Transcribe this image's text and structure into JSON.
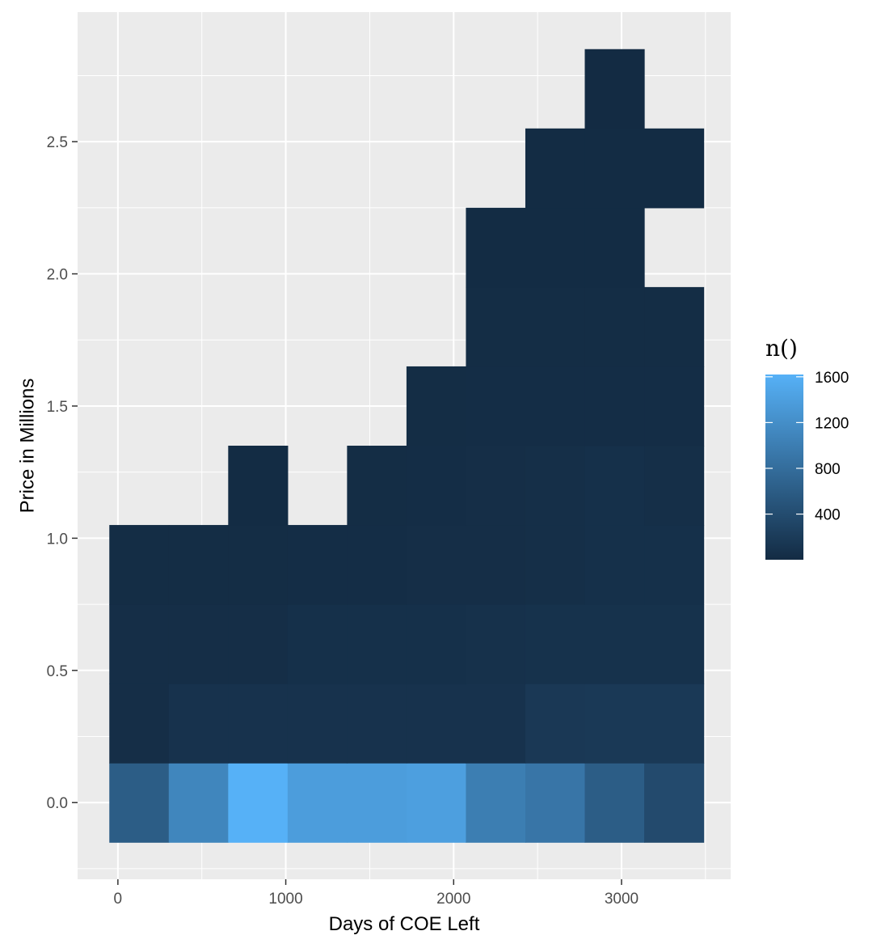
{
  "chart_data": {
    "type": "heatmap",
    "xlabel": "Days of COE Left",
    "ylabel": "Price in Millions",
    "xlim": [
      -240,
      3650
    ],
    "ylim": [
      -0.29,
      2.99
    ],
    "x_ticks": [
      0,
      1000,
      2000,
      3000
    ],
    "x_tick_labels": [
      "0",
      "1000",
      "2000",
      "3000"
    ],
    "y_ticks": [
      0.0,
      0.5,
      1.0,
      1.5,
      2.0,
      2.5
    ],
    "y_tick_labels": [
      "0.0",
      "0.5",
      "1.0",
      "1.5",
      "2.0",
      "2.5"
    ],
    "bin_width_x": 354,
    "bin_height_y": 0.3,
    "x_bin_centers": [
      126,
      480,
      834,
      1188,
      1542,
      1896,
      2250,
      2604,
      2958,
      3312
    ],
    "y_bin_centers": [
      0.0,
      0.3,
      0.6,
      0.9,
      1.2,
      1.5,
      1.8,
      2.1,
      2.4,
      2.7
    ],
    "cells": [
      {
        "x": 126,
        "y": 0.0,
        "count": 600
      },
      {
        "x": 480,
        "y": 0.0,
        "count": 1100
      },
      {
        "x": 834,
        "y": 0.0,
        "count": 1620
      },
      {
        "x": 1188,
        "y": 0.0,
        "count": 1380
      },
      {
        "x": 1542,
        "y": 0.0,
        "count": 1380
      },
      {
        "x": 1896,
        "y": 0.0,
        "count": 1400
      },
      {
        "x": 2250,
        "y": 0.0,
        "count": 1000
      },
      {
        "x": 2604,
        "y": 0.0,
        "count": 900
      },
      {
        "x": 2958,
        "y": 0.0,
        "count": 600
      },
      {
        "x": 3312,
        "y": 0.0,
        "count": 380
      },
      {
        "x": 126,
        "y": 0.3,
        "count": 40
      },
      {
        "x": 480,
        "y": 0.3,
        "count": 90
      },
      {
        "x": 834,
        "y": 0.3,
        "count": 90
      },
      {
        "x": 1188,
        "y": 0.3,
        "count": 90
      },
      {
        "x": 1542,
        "y": 0.3,
        "count": 90
      },
      {
        "x": 1896,
        "y": 0.3,
        "count": 90
      },
      {
        "x": 2250,
        "y": 0.3,
        "count": 90
      },
      {
        "x": 2604,
        "y": 0.3,
        "count": 160
      },
      {
        "x": 2958,
        "y": 0.3,
        "count": 170
      },
      {
        "x": 3312,
        "y": 0.3,
        "count": 170
      },
      {
        "x": 126,
        "y": 0.6,
        "count": 40
      },
      {
        "x": 480,
        "y": 0.6,
        "count": 40
      },
      {
        "x": 834,
        "y": 0.6,
        "count": 40
      },
      {
        "x": 1188,
        "y": 0.6,
        "count": 60
      },
      {
        "x": 1542,
        "y": 0.6,
        "count": 60
      },
      {
        "x": 1896,
        "y": 0.6,
        "count": 60
      },
      {
        "x": 2250,
        "y": 0.6,
        "count": 70
      },
      {
        "x": 2604,
        "y": 0.6,
        "count": 80
      },
      {
        "x": 2958,
        "y": 0.6,
        "count": 80
      },
      {
        "x": 3312,
        "y": 0.6,
        "count": 80
      },
      {
        "x": 126,
        "y": 0.9,
        "count": 20
      },
      {
        "x": 480,
        "y": 0.9,
        "count": 20
      },
      {
        "x": 834,
        "y": 0.9,
        "count": 20
      },
      {
        "x": 1188,
        "y": 0.9,
        "count": 30
      },
      {
        "x": 1542,
        "y": 0.9,
        "count": 30
      },
      {
        "x": 1896,
        "y": 0.9,
        "count": 40
      },
      {
        "x": 2250,
        "y": 0.9,
        "count": 40
      },
      {
        "x": 2604,
        "y": 0.9,
        "count": 50
      },
      {
        "x": 2958,
        "y": 0.9,
        "count": 60
      },
      {
        "x": 3312,
        "y": 0.9,
        "count": 60
      },
      {
        "x": 834,
        "y": 1.2,
        "count": 10
      },
      {
        "x": 1542,
        "y": 1.2,
        "count": 20
      },
      {
        "x": 1896,
        "y": 1.2,
        "count": 30
      },
      {
        "x": 2250,
        "y": 1.2,
        "count": 40
      },
      {
        "x": 2604,
        "y": 1.2,
        "count": 50
      },
      {
        "x": 2958,
        "y": 1.2,
        "count": 60
      },
      {
        "x": 3312,
        "y": 1.2,
        "count": 50
      },
      {
        "x": 1896,
        "y": 1.5,
        "count": 20
      },
      {
        "x": 2250,
        "y": 1.5,
        "count": 30
      },
      {
        "x": 2604,
        "y": 1.5,
        "count": 30
      },
      {
        "x": 2958,
        "y": 1.5,
        "count": 30
      },
      {
        "x": 3312,
        "y": 1.5,
        "count": 30
      },
      {
        "x": 2250,
        "y": 1.8,
        "count": 20
      },
      {
        "x": 2604,
        "y": 1.8,
        "count": 20
      },
      {
        "x": 2958,
        "y": 1.8,
        "count": 20
      },
      {
        "x": 3312,
        "y": 1.8,
        "count": 20
      },
      {
        "x": 2250,
        "y": 2.1,
        "count": 10
      },
      {
        "x": 2604,
        "y": 2.1,
        "count": 10
      },
      {
        "x": 2958,
        "y": 2.1,
        "count": 10
      },
      {
        "x": 2604,
        "y": 2.4,
        "count": 10
      },
      {
        "x": 2958,
        "y": 2.4,
        "count": 10
      },
      {
        "x": 3312,
        "y": 2.4,
        "count": 10
      },
      {
        "x": 2958,
        "y": 2.7,
        "count": 5
      }
    ],
    "legend": {
      "title": "n()",
      "placement": "right",
      "min": 1,
      "max": 1620,
      "ticks": [
        400,
        800,
        1200,
        1600
      ],
      "tick_labels": [
        "400",
        "800",
        "1200",
        "1600"
      ],
      "low_color": "#132B43",
      "high_color": "#56B1F7"
    },
    "grid": true,
    "panel_background": "#EBEBEB"
  }
}
